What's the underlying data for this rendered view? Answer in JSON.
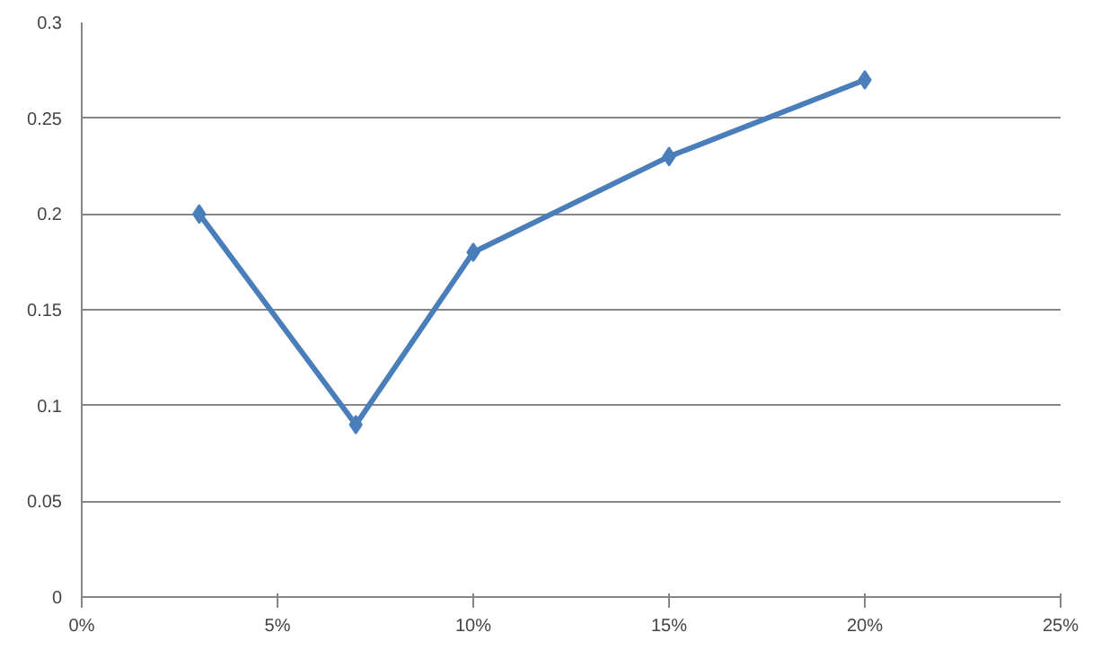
{
  "chart_data": {
    "type": "line",
    "x": [
      3,
      7,
      10,
      15,
      20
    ],
    "series": [
      {
        "color": "#4a7ebb",
        "values": [
          0.2,
          0.09,
          0.18,
          0.23,
          0.27
        ]
      }
    ],
    "xlim": [
      0,
      25
    ],
    "xticks": [
      {
        "value": 0,
        "label": "0%"
      },
      {
        "value": 5,
        "label": "5%"
      },
      {
        "value": 10,
        "label": "10%"
      },
      {
        "value": 15,
        "label": "15%"
      },
      {
        "value": 20,
        "label": "20%"
      },
      {
        "value": 25,
        "label": "25%"
      }
    ],
    "ylim": [
      0,
      0.3
    ],
    "yticks": [
      0,
      0.05,
      0.1,
      0.15,
      0.2,
      0.25,
      0.3
    ],
    "grid": "y",
    "marker": "diamond",
    "line_style": "solid"
  }
}
